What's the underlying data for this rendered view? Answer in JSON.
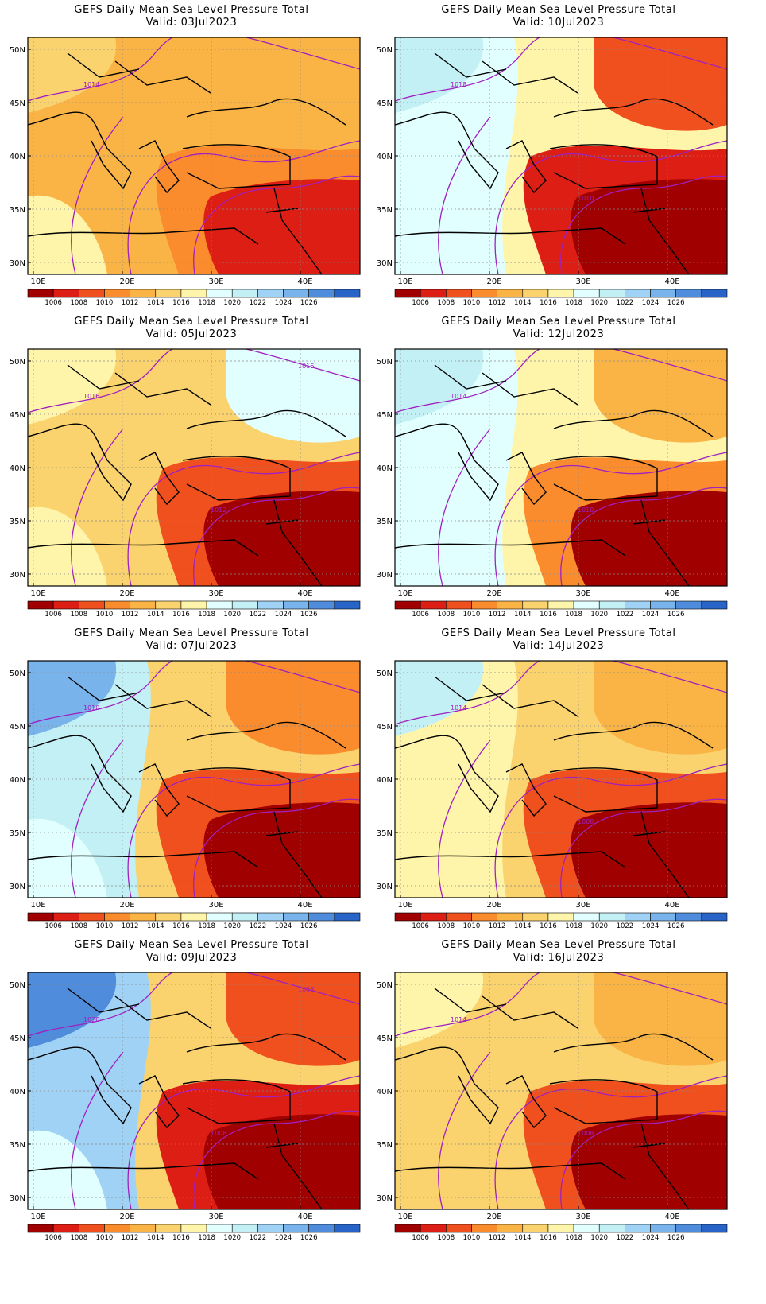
{
  "figure": {
    "panel_title": "GEFS Daily Mean Sea Level Pressure Total",
    "valid_prefix": "Valid:",
    "lat_labels": [
      "50N",
      "45N",
      "40N",
      "35N",
      "30N"
    ],
    "lon_labels": [
      "10E",
      "20E",
      "30E",
      "40E"
    ],
    "colorbar": {
      "colors": [
        "#a00000",
        "#dc1e14",
        "#f0501e",
        "#fa8c2d",
        "#fab446",
        "#fad26e",
        "#fff5aa",
        "#e1ffff",
        "#c3f0f5",
        "#a0d2f5",
        "#78b4eb",
        "#508cdc",
        "#2864c8"
      ],
      "labels": [
        "1006",
        "1008",
        "1010",
        "1012",
        "1014",
        "1016",
        "1018",
        "1020",
        "1022",
        "1024",
        "1026"
      ]
    },
    "colors": {
      "land_outline": "#000000",
      "isobar": "#a020c0",
      "grid": "#888888"
    }
  },
  "panels": [
    {
      "date": "03Jul2023",
      "isobar_label": "1014"
    },
    {
      "date": "10Jul2023",
      "isobar_label": "1018",
      "isobar_label_2": "1010"
    },
    {
      "date": "05Jul2023",
      "isobar_label": "1016",
      "isobar_label_2": "1012",
      "isobar_label_3": "1016"
    },
    {
      "date": "12Jul2023",
      "isobar_label": "1014",
      "isobar_label_2": "1010"
    },
    {
      "date": "07Jul2023",
      "isobar_label": "1010"
    },
    {
      "date": "14Jul2023",
      "isobar_label": "1014",
      "isobar_label_2": "1008"
    },
    {
      "date": "09Jul2023",
      "isobar_label": "1020",
      "isobar_label_2": "1008",
      "isobar_label_3": "1008"
    },
    {
      "date": "16Jul2023",
      "isobar_label": "1014",
      "isobar_label_2": "1008"
    }
  ]
}
